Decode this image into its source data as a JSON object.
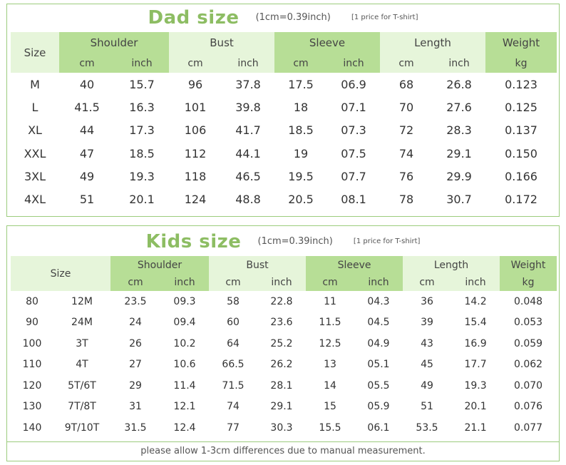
{
  "dad": {
    "title": "Dad size",
    "unit_note": "(1cm=0.39inch)",
    "price_note": "[1 price for T-shirt]",
    "size_header": "Size",
    "groups": [
      "Shoulder",
      "Bust",
      "Sleeve",
      "Length",
      "Weight"
    ],
    "units": [
      "cm",
      "inch",
      "cm",
      "inch",
      "cm",
      "inch",
      "cm",
      "inch",
      "kg"
    ],
    "rows": [
      [
        "M",
        "40",
        "15.7",
        "96",
        "37.8",
        "17.5",
        "06.9",
        "68",
        "26.8",
        "0.123"
      ],
      [
        "L",
        "41.5",
        "16.3",
        "101",
        "39.8",
        "18",
        "07.1",
        "70",
        "27.6",
        "0.125"
      ],
      [
        "XL",
        "44",
        "17.3",
        "106",
        "41.7",
        "18.5",
        "07.3",
        "72",
        "28.3",
        "0.137"
      ],
      [
        "XXL",
        "47",
        "18.5",
        "112",
        "44.1",
        "19",
        "07.5",
        "74",
        "29.1",
        "0.150"
      ],
      [
        "3XL",
        "49",
        "19.3",
        "118",
        "46.5",
        "19.5",
        "07.7",
        "76",
        "29.9",
        "0.166"
      ],
      [
        "4XL",
        "51",
        "20.1",
        "124",
        "48.8",
        "20.5",
        "08.1",
        "78",
        "30.7",
        "0.172"
      ]
    ]
  },
  "kids": {
    "title": "Kids size",
    "unit_note": "(1cm=0.39inch)",
    "price_note": "[1 price for T-shirt]",
    "size_header": "Size",
    "groups": [
      "Shoulder",
      "Bust",
      "Sleeve",
      "Length",
      "Weight"
    ],
    "units": [
      "cm",
      "inch",
      "cm",
      "inch",
      "cm",
      "inch",
      "cm",
      "inch",
      "kg"
    ],
    "rows": [
      [
        "80",
        "12M",
        "23.5",
        "09.3",
        "58",
        "22.8",
        "11",
        "04.3",
        "36",
        "14.2",
        "0.048"
      ],
      [
        "90",
        "24M",
        "24",
        "09.4",
        "60",
        "23.6",
        "11.5",
        "04.5",
        "39",
        "15.4",
        "0.053"
      ],
      [
        "100",
        "3T",
        "26",
        "10.2",
        "64",
        "25.2",
        "12.5",
        "04.9",
        "43",
        "16.9",
        "0.059"
      ],
      [
        "110",
        "4T",
        "27",
        "10.6",
        "66.5",
        "26.2",
        "13",
        "05.1",
        "45",
        "17.7",
        "0.062"
      ],
      [
        "120",
        "5T/6T",
        "29",
        "11.4",
        "71.5",
        "28.1",
        "14",
        "05.5",
        "49",
        "19.3",
        "0.070"
      ],
      [
        "130",
        "7T/8T",
        "31",
        "12.1",
        "74",
        "29.1",
        "15",
        "05.9",
        "51",
        "20.1",
        "0.076"
      ],
      [
        "140",
        "9T/10T",
        "31.5",
        "12.4",
        "77",
        "30.3",
        "15.5",
        "06.1",
        "53.5",
        "21.1",
        "0.077"
      ]
    ],
    "footnote": "please allow 1-3cm differences due to manual measurement."
  },
  "colors": {
    "title_green": "#8dbd63",
    "header_dark": "#b7de96",
    "header_light": "#e6f5da",
    "border": "#9ccc7d"
  }
}
